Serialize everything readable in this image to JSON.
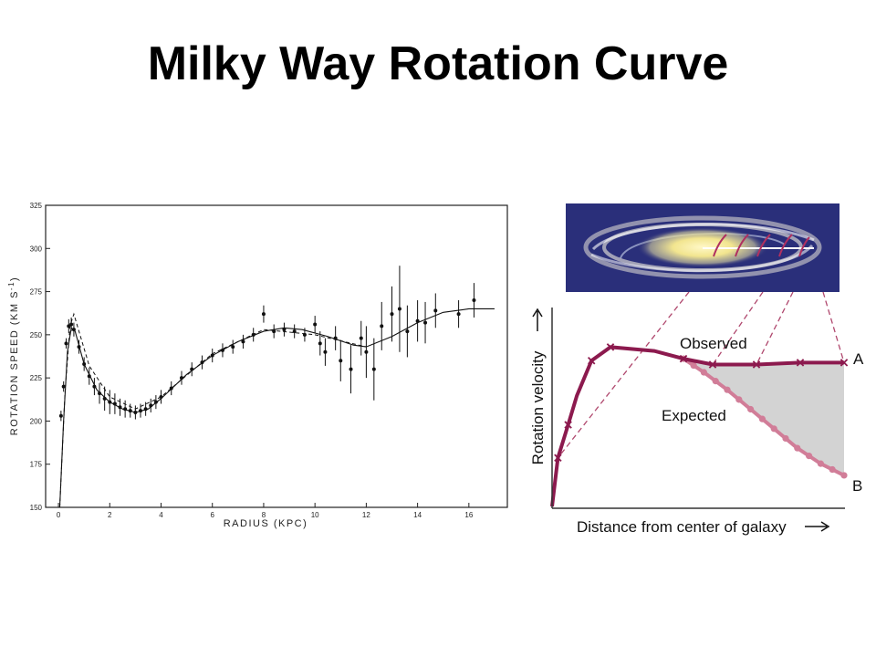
{
  "slide": {
    "title": "Milky Way Rotation Curve"
  },
  "chart_data": [
    {
      "type": "scatter",
      "title": "",
      "xlabel": "RADIUS (KPC)",
      "ylabel": "ROTATION SPEED (KM S-1)",
      "ylabel_parts": {
        "main": "ROTATION SPEED (KM S",
        "sup": "-1",
        "close": ")"
      },
      "xlim": [
        -0.5,
        17.5
      ],
      "ylim": [
        150,
        325
      ],
      "x_ticks": [
        0,
        2,
        4,
        6,
        8,
        10,
        12,
        14,
        16
      ],
      "y_ticks": [
        150,
        175,
        200,
        225,
        250,
        275,
        300,
        325
      ],
      "series": [
        {
          "style": "points with error bars",
          "points": [
            {
              "x": 0.1,
              "y": 203,
              "e": 3
            },
            {
              "x": 0.2,
              "y": 220,
              "e": 3
            },
            {
              "x": 0.3,
              "y": 245,
              "e": 3
            },
            {
              "x": 0.4,
              "y": 255,
              "e": 4
            },
            {
              "x": 0.5,
              "y": 256,
              "e": 4
            },
            {
              "x": 0.6,
              "y": 253,
              "e": 4
            },
            {
              "x": 0.8,
              "y": 243,
              "e": 4
            },
            {
              "x": 1.0,
              "y": 233,
              "e": 4
            },
            {
              "x": 1.2,
              "y": 226,
              "e": 5
            },
            {
              "x": 1.4,
              "y": 220,
              "e": 5
            },
            {
              "x": 1.6,
              "y": 216,
              "e": 6
            },
            {
              "x": 1.8,
              "y": 213,
              "e": 7
            },
            {
              "x": 2.0,
              "y": 211,
              "e": 7
            },
            {
              "x": 2.2,
              "y": 210,
              "e": 6
            },
            {
              "x": 2.4,
              "y": 208,
              "e": 5
            },
            {
              "x": 2.6,
              "y": 207,
              "e": 5
            },
            {
              "x": 2.8,
              "y": 206,
              "e": 4
            },
            {
              "x": 3.0,
              "y": 205,
              "e": 4
            },
            {
              "x": 3.2,
              "y": 206,
              "e": 4
            },
            {
              "x": 3.4,
              "y": 207,
              "e": 4
            },
            {
              "x": 3.6,
              "y": 209,
              "e": 4
            },
            {
              "x": 3.8,
              "y": 211,
              "e": 4
            },
            {
              "x": 4.0,
              "y": 214,
              "e": 4
            },
            {
              "x": 4.4,
              "y": 219,
              "e": 4
            },
            {
              "x": 4.8,
              "y": 225,
              "e": 4
            },
            {
              "x": 5.2,
              "y": 230,
              "e": 4
            },
            {
              "x": 5.6,
              "y": 234,
              "e": 4
            },
            {
              "x": 6.0,
              "y": 238,
              "e": 4
            },
            {
              "x": 6.4,
              "y": 241,
              "e": 4
            },
            {
              "x": 6.8,
              "y": 243,
              "e": 4
            },
            {
              "x": 7.2,
              "y": 246,
              "e": 4
            },
            {
              "x": 7.6,
              "y": 250,
              "e": 4
            },
            {
              "x": 8.0,
              "y": 262,
              "e": 5
            },
            {
              "x": 8.4,
              "y": 252,
              "e": 4
            },
            {
              "x": 8.8,
              "y": 253,
              "e": 4
            },
            {
              "x": 9.2,
              "y": 252,
              "e": 4
            },
            {
              "x": 9.6,
              "y": 250,
              "e": 4
            },
            {
              "x": 10.0,
              "y": 256,
              "e": 5
            },
            {
              "x": 10.2,
              "y": 245,
              "e": 7
            },
            {
              "x": 10.4,
              "y": 240,
              "e": 8
            },
            {
              "x": 10.8,
              "y": 248,
              "e": 7
            },
            {
              "x": 11.0,
              "y": 235,
              "e": 12
            },
            {
              "x": 11.4,
              "y": 230,
              "e": 14
            },
            {
              "x": 11.8,
              "y": 248,
              "e": 10
            },
            {
              "x": 12.0,
              "y": 240,
              "e": 15
            },
            {
              "x": 12.3,
              "y": 230,
              "e": 18
            },
            {
              "x": 12.6,
              "y": 255,
              "e": 14
            },
            {
              "x": 13.0,
              "y": 262,
              "e": 16
            },
            {
              "x": 13.3,
              "y": 265,
              "e": 25
            },
            {
              "x": 13.6,
              "y": 252,
              "e": 15
            },
            {
              "x": 14.0,
              "y": 258,
              "e": 12
            },
            {
              "x": 14.3,
              "y": 257,
              "e": 12
            },
            {
              "x": 14.7,
              "y": 264,
              "e": 10
            },
            {
              "x": 15.6,
              "y": 262,
              "e": 8
            },
            {
              "x": 16.2,
              "y": 270,
              "e": 10
            }
          ]
        },
        {
          "style": "solid model curve",
          "points": [
            {
              "x": 0.05,
              "y": 150
            },
            {
              "x": 0.2,
              "y": 200
            },
            {
              "x": 0.35,
              "y": 240
            },
            {
              "x": 0.5,
              "y": 254
            },
            {
              "x": 0.65,
              "y": 252
            },
            {
              "x": 1.0,
              "y": 233
            },
            {
              "x": 1.5,
              "y": 218
            },
            {
              "x": 2.0,
              "y": 211
            },
            {
              "x": 2.5,
              "y": 207
            },
            {
              "x": 3.0,
              "y": 205
            },
            {
              "x": 3.5,
              "y": 207
            },
            {
              "x": 4.0,
              "y": 213
            },
            {
              "x": 5.0,
              "y": 227
            },
            {
              "x": 6.0,
              "y": 238
            },
            {
              "x": 7.0,
              "y": 246
            },
            {
              "x": 8.0,
              "y": 252
            },
            {
              "x": 8.8,
              "y": 254
            },
            {
              "x": 9.5,
              "y": 253
            },
            {
              "x": 10.5,
              "y": 249
            },
            {
              "x": 11.5,
              "y": 244
            },
            {
              "x": 12.0,
              "y": 243
            },
            {
              "x": 13.0,
              "y": 249
            },
            {
              "x": 14.0,
              "y": 257
            },
            {
              "x": 15.0,
              "y": 263
            },
            {
              "x": 16.0,
              "y": 265
            },
            {
              "x": 17.0,
              "y": 265
            }
          ]
        },
        {
          "style": "dashed model curve",
          "points": [
            {
              "x": 0.05,
              "y": 150
            },
            {
              "x": 0.25,
              "y": 215
            },
            {
              "x": 0.45,
              "y": 255
            },
            {
              "x": 0.6,
              "y": 262
            },
            {
              "x": 0.8,
              "y": 252
            },
            {
              "x": 1.2,
              "y": 232
            },
            {
              "x": 2.0,
              "y": 214
            },
            {
              "x": 3.0,
              "y": 207
            },
            {
              "x": 4.0,
              "y": 214
            },
            {
              "x": 6.0,
              "y": 239
            },
            {
              "x": 8.0,
              "y": 253
            },
            {
              "x": 10.0,
              "y": 250
            },
            {
              "x": 12.0,
              "y": 243
            }
          ]
        }
      ]
    },
    {
      "type": "line",
      "title": "",
      "xlabel": "Distance from center of galaxy",
      "ylabel": "Rotation velocity",
      "xlim": [
        0,
        10
      ],
      "ylim": [
        0,
        10
      ],
      "grid": false,
      "series": [
        {
          "name": "Observed",
          "end_label": "A",
          "color": "#8c1a4e",
          "x": [
            0,
            0.2,
            0.55,
            0.85,
            1.35,
            2.0,
            3.5,
            4.5,
            5.5,
            7.0,
            8.5,
            10.0
          ],
          "y": [
            0,
            2.5,
            4.2,
            5.7,
            7.5,
            8.2,
            8.0,
            7.6,
            7.3,
            7.3,
            7.4,
            7.4
          ]
        },
        {
          "name": "Expected",
          "end_label": "B",
          "color": "#d17d98",
          "x": [
            4.5,
            5.2,
            6.0,
            6.8,
            7.6,
            8.4,
            9.2,
            10.0
          ],
          "y": [
            7.6,
            6.9,
            6.0,
            5.0,
            4.0,
            3.0,
            2.2,
            1.6
          ]
        }
      ],
      "shaded_difference": {
        "color": "#d3d3d3"
      }
    }
  ],
  "colors": {
    "galaxy_background": "#2a2f7a",
    "galaxy_core": "#f2e58f",
    "observed": "#8c1a4e",
    "expected": "#d17d98",
    "shade": "#d3d3d3"
  }
}
